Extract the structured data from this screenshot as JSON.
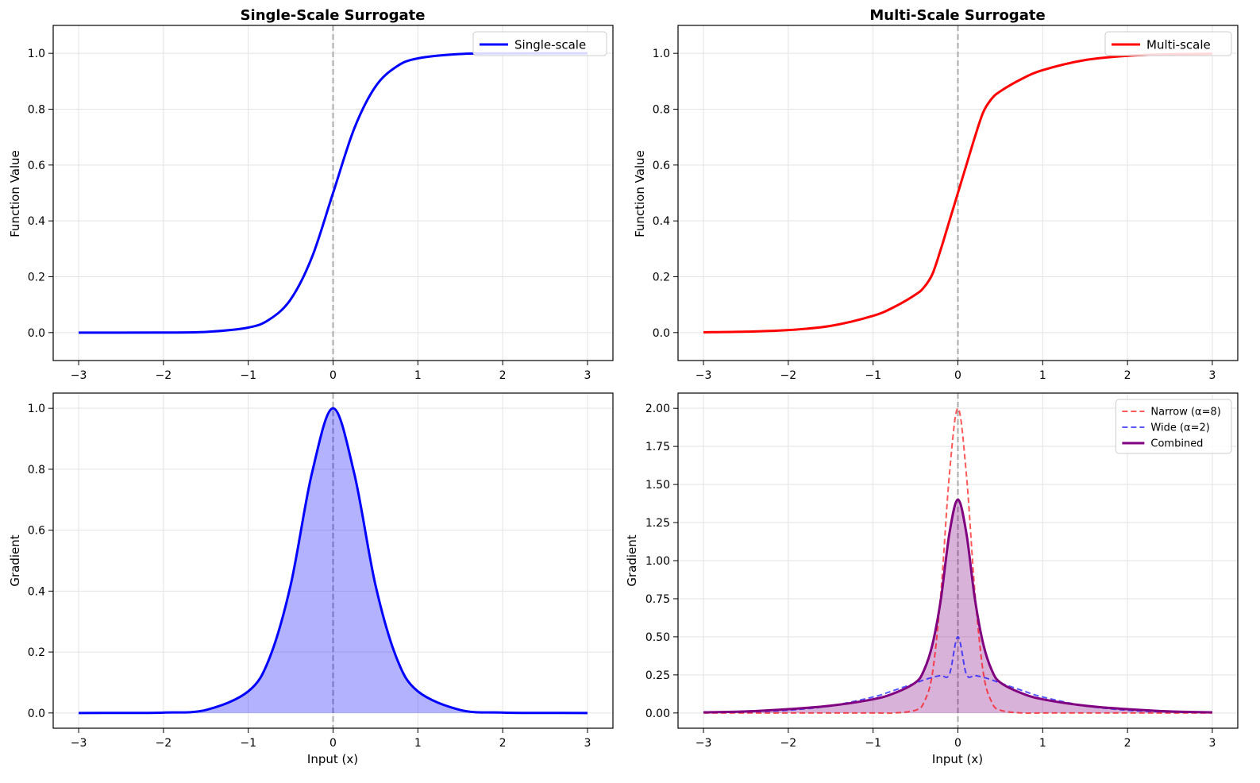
{
  "chart_data": [
    {
      "type": "line",
      "title": "Single-Scale Surrogate",
      "xlabel": "",
      "ylabel": "Function Value",
      "xlim": [
        -3.3,
        3.3
      ],
      "ylim": [
        -0.1,
        1.1
      ],
      "xticks": [
        -3,
        -2,
        -1,
        0,
        1,
        2,
        3
      ],
      "xtick_labels": [
        "−3",
        "−2",
        "−1",
        "0",
        "1",
        "2",
        "3"
      ],
      "yticks": [
        0.0,
        0.2,
        0.4,
        0.6,
        0.8,
        1.0
      ],
      "ytick_labels": [
        "0.0",
        "0.2",
        "0.4",
        "0.6",
        "0.8",
        "1.0"
      ],
      "grid": true,
      "vline_x": 0,
      "legend_position": "top-right",
      "x": [
        -3,
        -2.5,
        -2,
        -1.5,
        -1,
        -0.75,
        -0.5,
        -0.25,
        0,
        0.25,
        0.5,
        0.75,
        1,
        1.5,
        2,
        2.5,
        3
      ],
      "series": [
        {
          "name": "Single-scale",
          "color": "#0000ff",
          "style": "solid",
          "width": 3,
          "values": [
            0.0,
            0.0,
            0.0003,
            0.0025,
            0.018,
            0.047,
            0.119,
            0.269,
            0.5,
            0.731,
            0.881,
            0.953,
            0.982,
            0.9975,
            0.9997,
            1.0,
            1.0
          ]
        }
      ]
    },
    {
      "type": "line",
      "title": "Multi-Scale Surrogate",
      "xlabel": "",
      "ylabel": "Function Value",
      "xlim": [
        -3.3,
        3.3
      ],
      "ylim": [
        -0.1,
        1.1
      ],
      "xticks": [
        -3,
        -2,
        -1,
        0,
        1,
        2,
        3
      ],
      "xtick_labels": [
        "−3",
        "−2",
        "−1",
        "0",
        "1",
        "2",
        "3"
      ],
      "yticks": [
        0.0,
        0.2,
        0.4,
        0.6,
        0.8,
        1.0
      ],
      "ytick_labels": [
        "0.0",
        "0.2",
        "0.4",
        "0.6",
        "0.8",
        "1.0"
      ],
      "grid": true,
      "vline_x": 0,
      "legend_position": "top-right",
      "x": [
        -3,
        -2.5,
        -2,
        -1.5,
        -1,
        -0.75,
        -0.5,
        -0.4,
        -0.3,
        -0.2,
        -0.1,
        0,
        0.1,
        0.2,
        0.3,
        0.4,
        0.5,
        0.75,
        1,
        1.5,
        2,
        2.5,
        3
      ],
      "series": [
        {
          "name": "Multi-scale",
          "color": "#ff0000",
          "style": "solid",
          "width": 3,
          "values": [
            0.0012,
            0.0034,
            0.009,
            0.024,
            0.06,
            0.092,
            0.136,
            0.162,
            0.21,
            0.3,
            0.4,
            0.5,
            0.6,
            0.7,
            0.79,
            0.838,
            0.864,
            0.908,
            0.94,
            0.976,
            0.991,
            0.9966,
            0.9988
          ]
        }
      ]
    },
    {
      "type": "area",
      "title": "",
      "xlabel": "Input (x)",
      "ylabel": "Gradient",
      "xlim": [
        -3.3,
        3.3
      ],
      "ylim": [
        -0.05,
        1.05
      ],
      "xticks": [
        -3,
        -2,
        -1,
        0,
        1,
        2,
        3
      ],
      "xtick_labels": [
        "−3",
        "−2",
        "−1",
        "0",
        "1",
        "2",
        "3"
      ],
      "yticks": [
        0.0,
        0.2,
        0.4,
        0.6,
        0.8,
        1.0
      ],
      "ytick_labels": [
        "0.0",
        "0.2",
        "0.4",
        "0.6",
        "0.8",
        "1.0"
      ],
      "grid": true,
      "vline_x": 0,
      "x": [
        -3,
        -2.5,
        -2,
        -1.5,
        -1,
        -0.75,
        -0.5,
        -0.25,
        0,
        0.25,
        0.5,
        0.75,
        1,
        1.5,
        2,
        2.5,
        3
      ],
      "series": [
        {
          "name": "",
          "color": "#0000ff",
          "style": "solid",
          "width": 3,
          "fill": "rgba(0,0,255,0.3)",
          "values": [
            0.0,
            0.0002,
            0.0013,
            0.0099,
            0.071,
            0.18,
            0.42,
            0.786,
            1.0,
            0.786,
            0.42,
            0.18,
            0.071,
            0.0099,
            0.0013,
            0.0002,
            0.0
          ]
        }
      ]
    },
    {
      "type": "area",
      "title": "",
      "xlabel": "Input (x)",
      "ylabel": "Gradient",
      "xlim": [
        -3.3,
        3.3
      ],
      "ylim": [
        -0.1,
        2.1
      ],
      "xticks": [
        -3,
        -2,
        -1,
        0,
        1,
        2,
        3
      ],
      "xtick_labels": [
        "−3",
        "−2",
        "−1",
        "0",
        "1",
        "2",
        "3"
      ],
      "yticks": [
        0.0,
        0.25,
        0.5,
        0.75,
        1.0,
        1.25,
        1.5,
        1.75,
        2.0
      ],
      "ytick_labels": [
        "0.00",
        "0.25",
        "0.50",
        "0.75",
        "1.00",
        "1.25",
        "1.50",
        "1.75",
        "2.00"
      ],
      "grid": true,
      "vline_x": 0,
      "legend_position": "top-right",
      "x": [
        -3,
        -2.5,
        -2,
        -1.5,
        -1,
        -0.75,
        -0.5,
        -0.4,
        -0.3,
        -0.2,
        -0.1,
        0,
        0.1,
        0.2,
        0.3,
        0.4,
        0.5,
        0.75,
        1,
        1.5,
        2,
        2.5,
        3
      ],
      "series": [
        {
          "name": "Narrow (α=8)",
          "color": "rgba(255,0,0,0.65)",
          "style": "dashed",
          "width": 2,
          "values": [
            0.0,
            0.0,
            0.0,
            0.0,
            0.0,
            0.0,
            0.018,
            0.07,
            0.262,
            0.794,
            1.567,
            2.0,
            1.567,
            0.794,
            0.262,
            0.07,
            0.018,
            0.0,
            0.0,
            0.0,
            0.0,
            0.0,
            0.0
          ]
        },
        {
          "name": "Wide (α=2)",
          "color": "rgba(0,0,255,0.65)",
          "style": "dashed",
          "width": 2,
          "values": [
            0.0025,
            0.0067,
            0.018,
            0.047,
            0.105,
            0.149,
            0.197,
            0.217,
            0.234,
            0.246,
            0.254,
            0.5,
            0.254,
            0.246,
            0.234,
            0.217,
            0.197,
            0.149,
            0.105,
            0.047,
            0.018,
            0.0067,
            0.0025
          ]
        },
        {
          "name": "Combined",
          "color": "#800080",
          "style": "solid",
          "width": 3,
          "fill": "rgba(128,0,128,0.3)",
          "values": [
            0.004,
            0.01,
            0.025,
            0.048,
            0.09,
            0.13,
            0.2,
            0.28,
            0.45,
            0.75,
            1.18,
            1.4,
            1.18,
            0.75,
            0.45,
            0.28,
            0.2,
            0.13,
            0.09,
            0.048,
            0.025,
            0.01,
            0.004
          ]
        }
      ]
    }
  ]
}
